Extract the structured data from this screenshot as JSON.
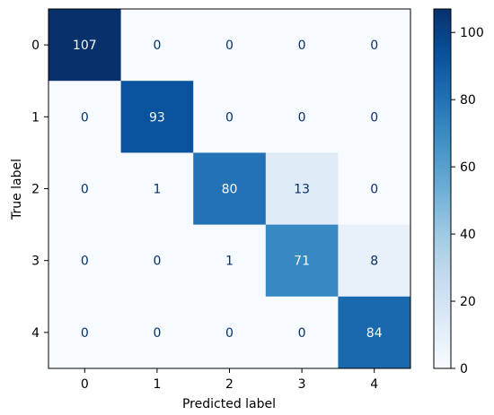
{
  "chart_data": {
    "type": "heatmap",
    "xlabel": "Predicted label",
    "ylabel": "True label",
    "x_categories": [
      "0",
      "1",
      "2",
      "3",
      "4"
    ],
    "y_categories": [
      "0",
      "1",
      "2",
      "3",
      "4"
    ],
    "values": [
      [
        107,
        0,
        0,
        0,
        0
      ],
      [
        0,
        93,
        0,
        0,
        0
      ],
      [
        0,
        1,
        80,
        13,
        0
      ],
      [
        0,
        0,
        1,
        71,
        8
      ],
      [
        0,
        0,
        0,
        0,
        84
      ]
    ],
    "colormap": "Blues",
    "colorbar": {
      "range": [
        0,
        107
      ],
      "ticks": [
        0,
        20,
        40,
        60,
        80,
        100
      ]
    },
    "colors": {
      "low": "#f7fbff",
      "high": "#08306b",
      "text_light": "#f7fbff",
      "text_dark": "#08306b"
    }
  }
}
